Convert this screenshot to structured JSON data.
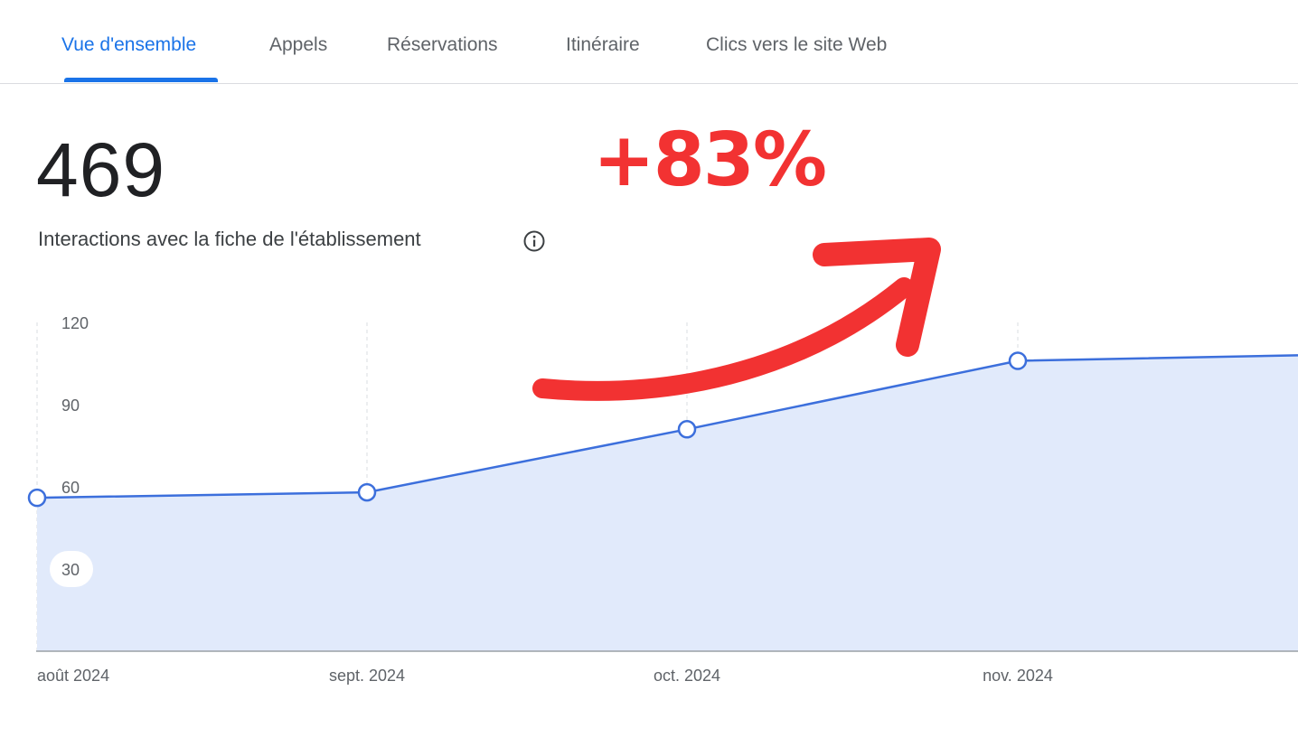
{
  "tabs": [
    {
      "label": "Vue d'ensemble",
      "active": true
    },
    {
      "label": "Appels",
      "active": false
    },
    {
      "label": "Réservations",
      "active": false
    },
    {
      "label": "Itinéraire",
      "active": false
    },
    {
      "label": "Clics vers le site Web",
      "active": false
    }
  ],
  "summary": {
    "total": "469",
    "label": "Interactions avec la fiche de l'établissement",
    "info_icon": "info-icon"
  },
  "annotation": {
    "text": "+83%",
    "color": "#f23232",
    "arrow_icon": "curved-arrow-icon"
  },
  "chart_data": {
    "type": "area",
    "categories": [
      "août 2024",
      "sept. 2024",
      "oct. 2024",
      "nov. 2024"
    ],
    "values": [
      56,
      58,
      81,
      106
    ],
    "trailing_value": 108,
    "ylim": [
      0,
      120
    ],
    "yticks": [
      30,
      60,
      90,
      120
    ],
    "grid": "vertical-dashed",
    "line_color": "#3c6fdc",
    "fill_color": "#e1eafb"
  }
}
